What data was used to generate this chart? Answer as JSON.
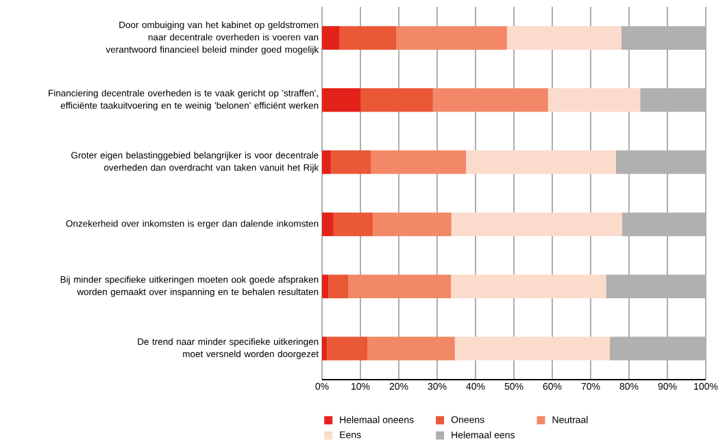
{
  "chart_data": {
    "type": "bar",
    "orientation": "horizontal",
    "stacked": true,
    "categories": [
      "Door ombuiging van het kabinet op geldstromen naar decentrale overheden is voeren van verantwoord financieel beleid minder goed mogelijk",
      "Financiering decentrale overheden is te vaak gericht op 'straffen', efficiënte taakuitvoering en te weinig 'belonen' efficiënt werken",
      "Groter eigen belastinggebied belangrijker is voor decentrale overheden dan overdracht van taken vanuit het Rijk",
      "Onzekerheid over inkomsten is erger dan dalende inkomsten",
      "Bij minder specifieke uitkeringen moeten ook goede afspraken worden gemaakt over inspanning en te behalen resultaten",
      "De trend naar minder specifieke uitkeringen moet versneld worden doorgezet"
    ],
    "series": [
      {
        "name": "Helemaal oneens",
        "color": "#e32219",
        "values": [
          4.6,
          10.1,
          2.3,
          3.0,
          1.7,
          1.3
        ]
      },
      {
        "name": "Oneens",
        "color": "#ea5836",
        "values": [
          14.8,
          18.8,
          10.5,
          10.3,
          5.2,
          10.6
        ]
      },
      {
        "name": "Neutraal",
        "color": "#f28867",
        "values": [
          28.8,
          30.0,
          24.7,
          20.4,
          26.7,
          22.7
        ]
      },
      {
        "name": "Eens",
        "color": "#fbdbcb",
        "values": [
          29.8,
          24.0,
          39.1,
          44.5,
          40.4,
          40.4
        ]
      },
      {
        "name": "Helemaal eens",
        "color": "#b0b0b0",
        "values": [
          22.0,
          17.1,
          23.4,
          21.8,
          26.0,
          25.0
        ]
      }
    ],
    "xlim": [
      0,
      100
    ],
    "xticks": [
      {
        "value": 0,
        "label": "0%"
      },
      {
        "value": 10,
        "label": "10%"
      },
      {
        "value": 20,
        "label": "20%"
      },
      {
        "value": 30,
        "label": "30%"
      },
      {
        "value": 40,
        "label": "40%"
      },
      {
        "value": 50,
        "label": "50%"
      },
      {
        "value": 60,
        "label": "60%"
      },
      {
        "value": 70,
        "label": "70%"
      },
      {
        "value": 80,
        "label": "80%"
      },
      {
        "value": 90,
        "label": "90%"
      },
      {
        "value": 100,
        "label": "100%"
      }
    ],
    "grid": "x",
    "legend": "bottom"
  }
}
